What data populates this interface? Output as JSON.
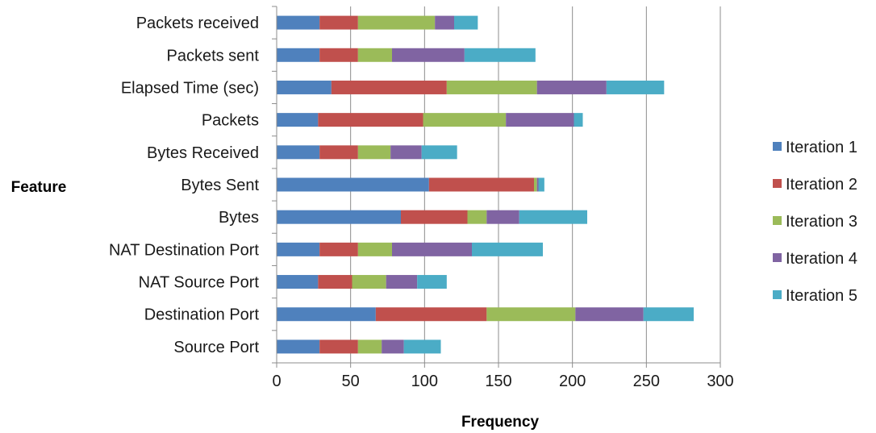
{
  "chart_data": {
    "type": "bar",
    "orientation": "horizontal",
    "stacked": true,
    "xlabel": "Frequency",
    "ylabel": "Feature",
    "xlim": [
      0,
      300
    ],
    "xticks": [
      0,
      50,
      100,
      150,
      200,
      250,
      300
    ],
    "grid": true,
    "legend_position": "right",
    "categories": [
      "Packets received",
      "Packets sent",
      "Elapsed Time (sec)",
      "Packets",
      "Bytes Received",
      "Bytes Sent",
      "Bytes",
      "NAT Destination Port",
      "NAT Source Port",
      "Destination Port",
      "Source Port"
    ],
    "series": [
      {
        "name": "Iteration 1",
        "color": "#4f81bd",
        "values": [
          29,
          29,
          37,
          28,
          29,
          103,
          84,
          29,
          28,
          67,
          29
        ]
      },
      {
        "name": "Iteration 2",
        "color": "#c0504d",
        "values": [
          26,
          26,
          78,
          71,
          26,
          71,
          45,
          26,
          23,
          75,
          26
        ]
      },
      {
        "name": "Iteration 3",
        "color": "#9bbb59",
        "values": [
          52,
          23,
          61,
          56,
          22,
          2,
          13,
          23,
          23,
          60,
          16
        ]
      },
      {
        "name": "Iteration 4",
        "color": "#8064a2",
        "values": [
          13,
          49,
          47,
          46,
          21,
          1,
          22,
          54,
          21,
          46,
          15
        ]
      },
      {
        "name": "Iteration 5",
        "color": "#4bacc6",
        "values": [
          16,
          48,
          39,
          6,
          24,
          4,
          46,
          48,
          20,
          34,
          25
        ]
      }
    ]
  }
}
